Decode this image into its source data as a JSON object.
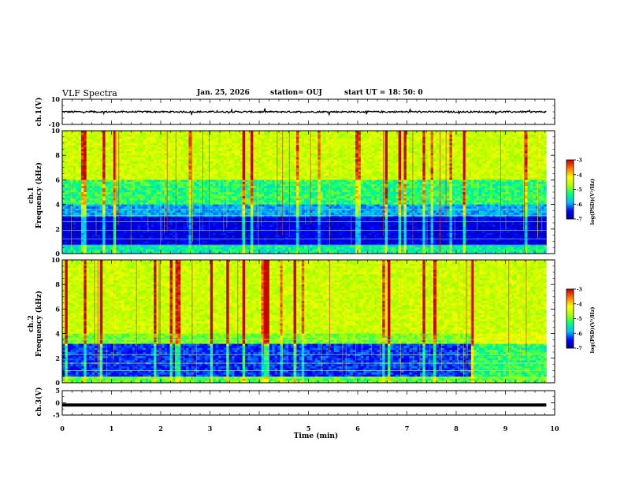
{
  "header": {
    "title": "VLF Spectra",
    "date": "Jan. 25, 2026",
    "station": "station= OUJ",
    "start": "start  UT  =   18: 50: 0"
  },
  "chart_data": [
    {
      "type": "line",
      "name": "ch1-voltage",
      "ylabel": "ch.1(V)",
      "ylim": [
        -10,
        10
      ],
      "yticks": [
        "10",
        "-10"
      ],
      "xlim": [
        0,
        9.83
      ],
      "baseline": 0,
      "noise_amplitude": 1.2
    },
    {
      "type": "heatmap",
      "name": "ch1-spectrogram",
      "ylabel": "ch.1\nFrequency (kHz)",
      "ylim": [
        0,
        10
      ],
      "yticks": [
        "0",
        "2",
        "4",
        "6",
        "8",
        "10"
      ],
      "xlim": [
        0,
        9.83
      ],
      "colorbar": {
        "label": "log(PSD)(V²/Hz)",
        "min": -7,
        "max": -3,
        "ticks": [
          "-3",
          "-4",
          "-5",
          "-6",
          "-7"
        ]
      }
    },
    {
      "type": "heatmap",
      "name": "ch2-spectrogram",
      "ylabel": "ch.2\nFrequency (kHz)",
      "ylim": [
        0,
        10
      ],
      "yticks": [
        "0",
        "2",
        "4",
        "6",
        "8",
        "10"
      ],
      "xlim": [
        0,
        9.83
      ],
      "regime_change_min": 8.3,
      "colorbar": {
        "label": "log(PSD)(V²/Hz)",
        "min": -7,
        "max": -3,
        "ticks": [
          "-3",
          "-4",
          "-5",
          "-6",
          "-7"
        ]
      }
    },
    {
      "type": "line",
      "name": "ch3-voltage",
      "ylabel": "ch.3(V)",
      "ylim": [
        -5,
        5
      ],
      "yticks": [
        "5",
        "0",
        "-5"
      ],
      "xlim": [
        0,
        9.83
      ],
      "baseline": -0.9
    }
  ],
  "xaxis": {
    "label": "Time  (min)",
    "range": [
      0,
      10
    ],
    "ticks": [
      "0",
      "1",
      "2",
      "3",
      "4",
      "5",
      "6",
      "7",
      "8",
      "9",
      "10"
    ]
  },
  "colors": {
    "colormap": [
      "#00007f",
      "#0000ff",
      "#00bfff",
      "#00ff7f",
      "#aaff00",
      "#ffff00",
      "#ff7f00",
      "#cc0000"
    ]
  }
}
